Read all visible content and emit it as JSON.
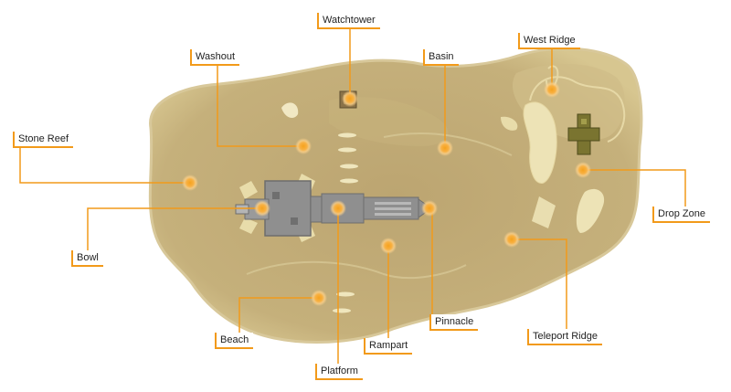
{
  "map": {
    "accent_color": "#f29a1a",
    "terrain_color": "#c8b37a",
    "locations": [
      {
        "id": "watchtower",
        "label": "Watchtower"
      },
      {
        "id": "west-ridge",
        "label": "West Ridge"
      },
      {
        "id": "washout",
        "label": "Washout"
      },
      {
        "id": "basin",
        "label": "Basin"
      },
      {
        "id": "stone-reef",
        "label": "Stone Reef"
      },
      {
        "id": "drop-zone",
        "label": "Drop Zone"
      },
      {
        "id": "bowl",
        "label": "Bowl"
      },
      {
        "id": "pinnacle",
        "label": "Pinnacle"
      },
      {
        "id": "teleport-ridge",
        "label": "Teleport Ridge"
      },
      {
        "id": "beach",
        "label": "Beach"
      },
      {
        "id": "rampart",
        "label": "Rampart"
      },
      {
        "id": "platform",
        "label": "Platform"
      }
    ]
  }
}
